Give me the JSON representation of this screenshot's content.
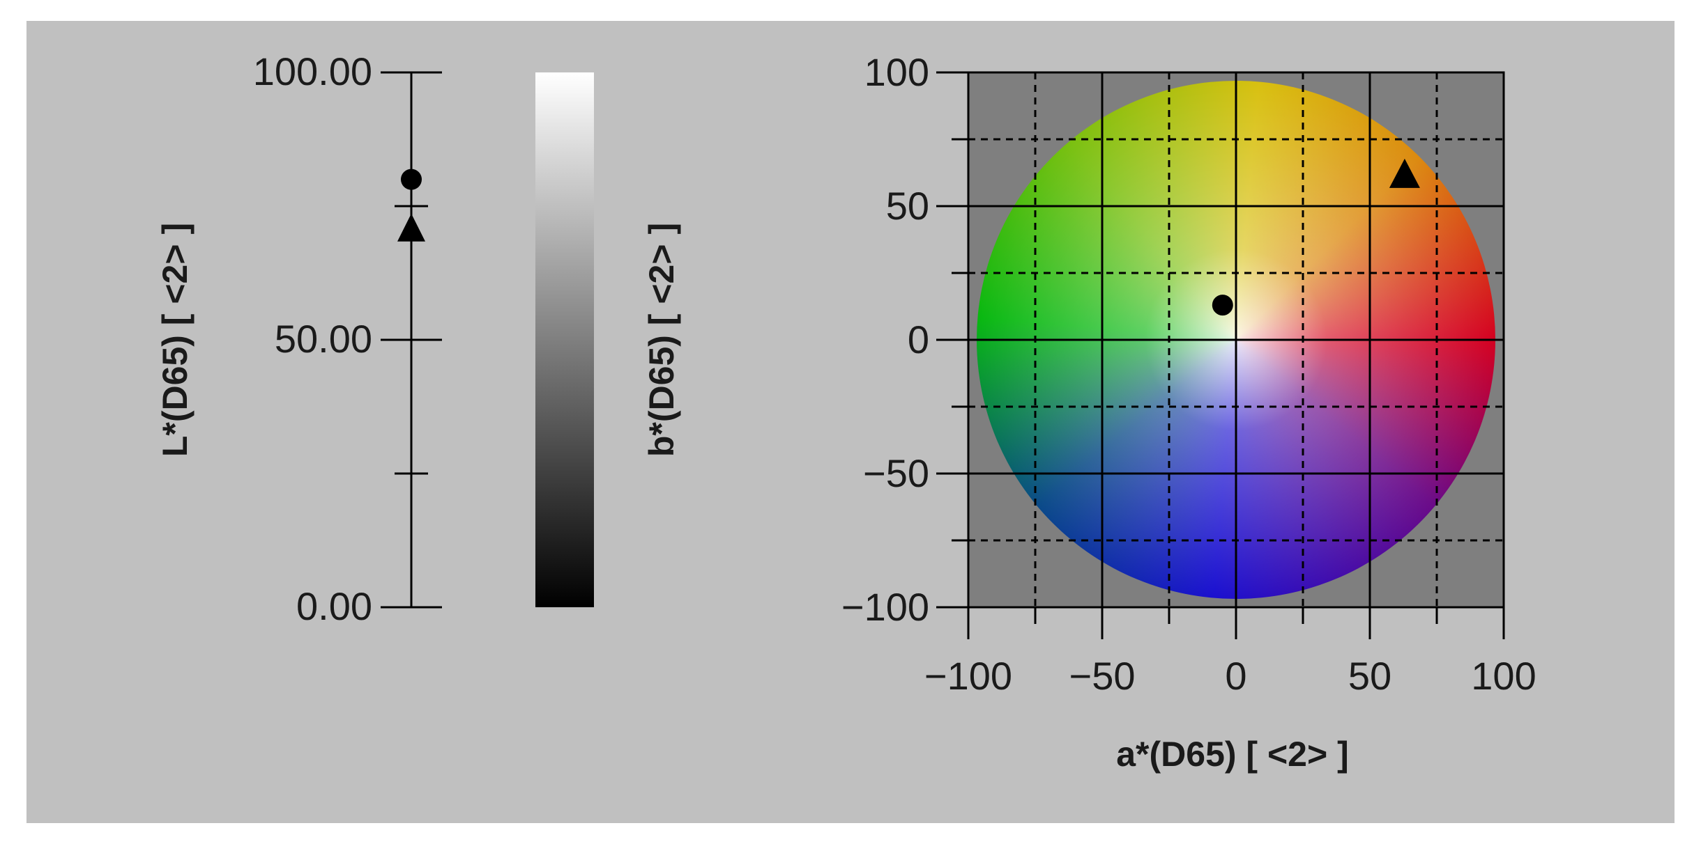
{
  "chart_data": [
    {
      "type": "scatter",
      "subtype": "lightness-scale",
      "ylabel": "L*(D65) [ <2> ]",
      "ylim": [
        0,
        100
      ],
      "yticks": [
        0,
        50,
        100
      ],
      "ytick_labels": [
        "0.00",
        "50.00",
        "100.00"
      ],
      "minor_ticks": [
        25,
        75
      ],
      "colorbar_range": [
        0,
        100
      ],
      "points": [
        {
          "marker": "circle",
          "L": 80
        },
        {
          "marker": "triangle",
          "L": 71
        }
      ]
    },
    {
      "type": "scatter",
      "subtype": "a*b* chromaticity plane",
      "xlabel": "a*(D65) [ <2> ]",
      "ylabel": "b*(D65) [ <2> ]",
      "xlim": [
        -100,
        100
      ],
      "ylim": [
        -100,
        100
      ],
      "xticks": [
        -100,
        -50,
        0,
        50,
        100
      ],
      "yticks": [
        -100,
        -50,
        0,
        50,
        100
      ],
      "xtick_labels": [
        "−100",
        "−50",
        "0",
        "50",
        "100"
      ],
      "ytick_labels": [
        "100",
        "50",
        "0",
        "−50",
        "−100"
      ],
      "grid": true,
      "grid_minor_dashed": [
        -75,
        -25,
        25,
        75
      ],
      "points": [
        {
          "marker": "circle",
          "a": -5,
          "b": 13
        },
        {
          "marker": "triangle",
          "a": 63,
          "b": 62
        }
      ]
    }
  ]
}
